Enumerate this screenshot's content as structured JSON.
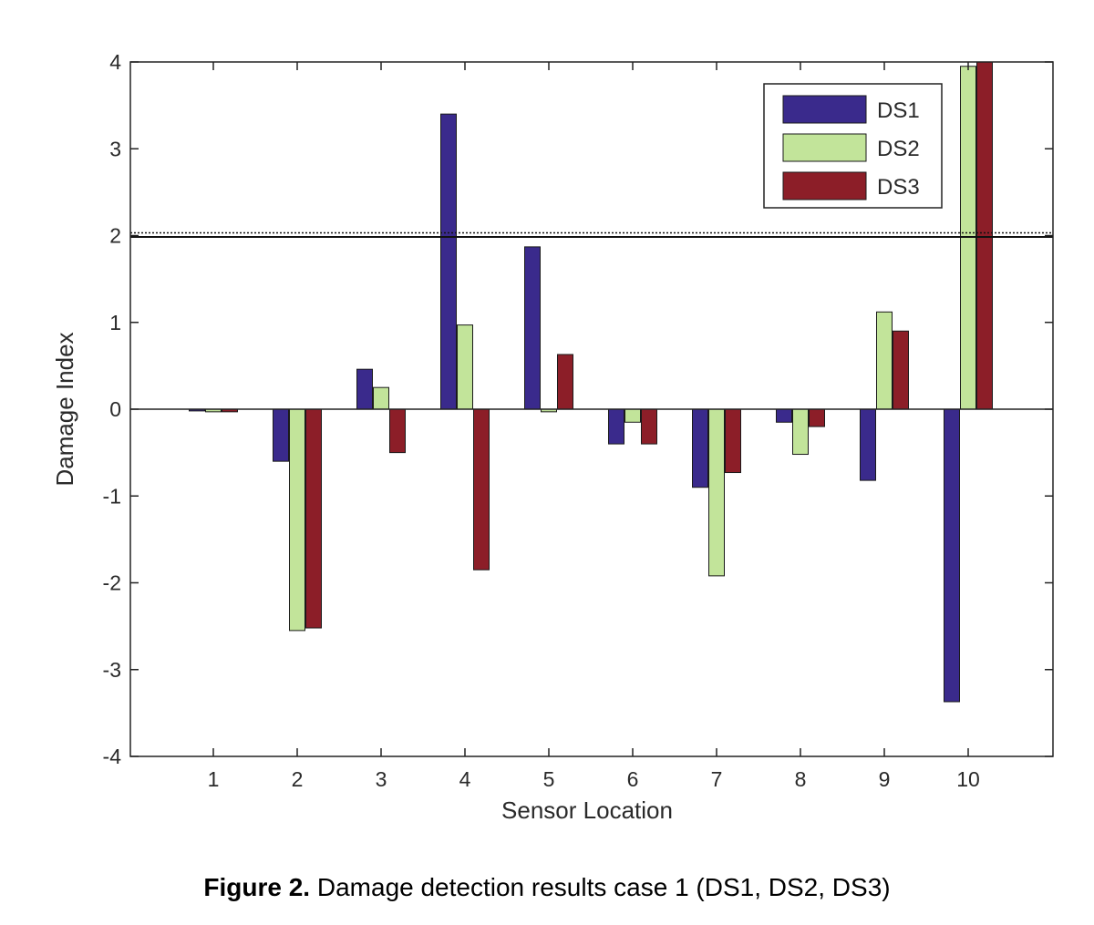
{
  "chart_data": {
    "type": "bar",
    "xlabel": "Sensor Location",
    "ylabel": "Damage Index",
    "categories": [
      "1",
      "2",
      "3",
      "4",
      "5",
      "6",
      "7",
      "8",
      "9",
      "10"
    ],
    "ylim": [
      -4,
      4
    ],
    "yticks": [
      -4,
      -3,
      -2,
      -1,
      0,
      1,
      2,
      3,
      4
    ],
    "threshold_value": 2,
    "legend_position": "top-right",
    "grid": false,
    "series": [
      {
        "name": "DS1",
        "color": "#3a2a8c",
        "values": [
          -0.02,
          -0.6,
          0.46,
          3.4,
          1.87,
          -0.4,
          -0.9,
          -0.15,
          -0.82,
          -3.37
        ]
      },
      {
        "name": "DS2",
        "color": "#c2e49a",
        "values": [
          -0.03,
          -2.55,
          0.25,
          0.97,
          -0.03,
          -0.15,
          -1.92,
          -0.52,
          1.12,
          3.95
        ]
      },
      {
        "name": "DS3",
        "color": "#8c1e28",
        "values": [
          -0.03,
          -2.52,
          -0.5,
          -1.85,
          0.63,
          -0.4,
          -0.73,
          -0.2,
          0.9,
          4.0
        ]
      }
    ]
  },
  "caption": {
    "label": "Figure 2.",
    "text": " Damage detection results case 1 (DS1, DS2, DS3)"
  }
}
